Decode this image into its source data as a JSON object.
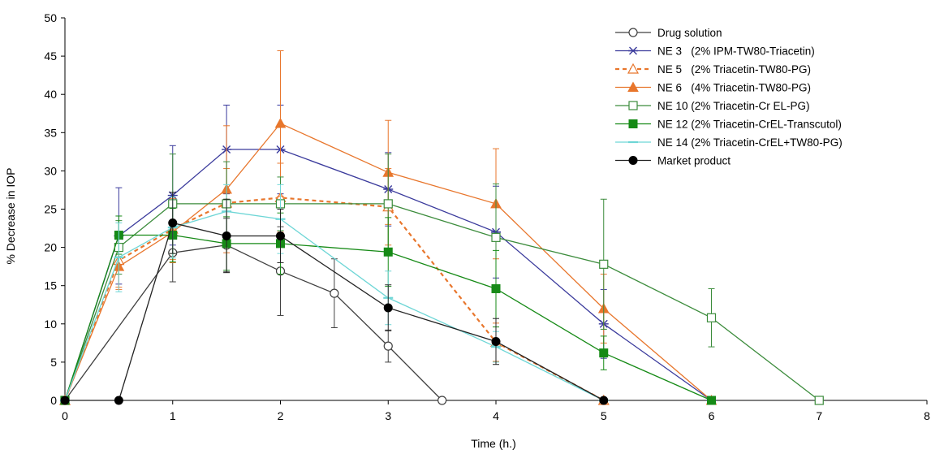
{
  "chart_data": {
    "type": "line",
    "title": "",
    "xlabel": "Time (h.)",
    "ylabel": "% Decrease in IOP",
    "xlim": [
      0,
      8
    ],
    "ylim": [
      0,
      50
    ],
    "xticks": [
      0,
      1,
      2,
      3,
      4,
      5,
      6,
      7,
      8
    ],
    "yticks": [
      0,
      5,
      10,
      15,
      20,
      25,
      30,
      35,
      40,
      45,
      50
    ],
    "grid": false,
    "legend_position": "top-right",
    "series": [
      {
        "name": "Drug solution",
        "color": "#404040",
        "marker": "open-circle",
        "dash": "solid",
        "points": [
          [
            0,
            0
          ],
          [
            1,
            19.3
          ],
          [
            1.5,
            20.3
          ],
          [
            2,
            16.9
          ],
          [
            2.5,
            14.0
          ],
          [
            3,
            7.1
          ],
          [
            3.5,
            0
          ]
        ],
        "errors": [
          0,
          3.8,
          3.5,
          5.8,
          4.5,
          2.1,
          0
        ]
      },
      {
        "name": "NE 3   (2% IPM-TW80-Triacetin)",
        "color": "#3a3a9c",
        "marker": "star",
        "dash": "solid",
        "points": [
          [
            0,
            0
          ],
          [
            0.5,
            21.5
          ],
          [
            1,
            26.8
          ],
          [
            1.5,
            32.8
          ],
          [
            2,
            32.8
          ],
          [
            3,
            27.6
          ],
          [
            4,
            22.0
          ],
          [
            5,
            10.0
          ],
          [
            6,
            0
          ]
        ],
        "errors": [
          0,
          6.3,
          6.5,
          5.8,
          5.8,
          4.8,
          6.0,
          4.5,
          0
        ]
      },
      {
        "name": "NE 5   (2% Triacetin-TW80-PG)",
        "color": "#e8762c",
        "marker": "open-triangle",
        "dash": "dashed",
        "points": [
          [
            0,
            0
          ],
          [
            0.5,
            18.3
          ],
          [
            1,
            22.4
          ],
          [
            1.5,
            25.8
          ],
          [
            2,
            26.5
          ],
          [
            3,
            25.3
          ],
          [
            4,
            7.6
          ],
          [
            5,
            0
          ]
        ],
        "errors": [
          0,
          3.5,
          4.0,
          4.5,
          4.5,
          5.0,
          2.5,
          0
        ]
      },
      {
        "name": "NE 6   (4% Triacetin-TW80-PG)",
        "color": "#e8762c",
        "marker": "filled-triangle",
        "dash": "solid",
        "points": [
          [
            0,
            0
          ],
          [
            0.5,
            17.5
          ],
          [
            1,
            22.0
          ],
          [
            1.5,
            27.6
          ],
          [
            2,
            36.2
          ],
          [
            3,
            29.8
          ],
          [
            4,
            25.7
          ],
          [
            5,
            12.0
          ],
          [
            6,
            0
          ]
        ],
        "errors": [
          0,
          3.0,
          4.0,
          8.3,
          9.5,
          6.8,
          7.2,
          4.5,
          0
        ]
      },
      {
        "name": "NE 10 (2% Triacetin-Cr EL-PG)",
        "color": "#3c8c3c",
        "marker": "open-square",
        "dash": "solid",
        "points": [
          [
            0,
            0
          ],
          [
            0.5,
            20.0
          ],
          [
            1,
            25.7
          ],
          [
            1.5,
            25.7
          ],
          [
            2,
            25.7
          ],
          [
            3,
            25.7
          ],
          [
            4,
            21.3
          ],
          [
            5,
            17.8
          ],
          [
            6,
            10.8
          ],
          [
            7,
            0
          ]
        ],
        "errors": [
          0,
          3.5,
          6.5,
          5.5,
          3.5,
          6.5,
          7.0,
          8.5,
          3.8,
          0
        ]
      },
      {
        "name": "NE 12 (2% Triacetin-CrEL-Transcutol)",
        "color": "#168a16",
        "marker": "filled-square",
        "dash": "solid",
        "points": [
          [
            0,
            0
          ],
          [
            0.5,
            21.6
          ],
          [
            1,
            21.6
          ],
          [
            1.5,
            20.5
          ],
          [
            2,
            20.5
          ],
          [
            3,
            19.4
          ],
          [
            4,
            14.6
          ],
          [
            5,
            6.2
          ],
          [
            6,
            0
          ]
        ],
        "errors": [
          0,
          2.5,
          3.5,
          3.5,
          4.0,
          4.5,
          5.0,
          2.2,
          0
        ]
      },
      {
        "name": "NE 14 (2% Triacetin-CrEL+TW80-PG)",
        "color": "#6ed6d6",
        "marker": "dash",
        "dash": "solid",
        "points": [
          [
            0,
            0
          ],
          [
            0.5,
            18.7
          ],
          [
            1,
            22.6
          ],
          [
            1.5,
            24.7
          ],
          [
            2,
            23.7
          ],
          [
            3,
            13.4
          ],
          [
            4,
            7.0
          ],
          [
            5,
            0
          ]
        ],
        "errors": [
          0,
          4.5,
          4.0,
          3.5,
          4.5,
          3.5,
          2.0,
          0
        ]
      },
      {
        "name": "Market product",
        "color": "#222222",
        "marker": "filled-circle",
        "dash": "solid",
        "points": [
          [
            0,
            0
          ],
          [
            0.5,
            0
          ],
          [
            1,
            23.2
          ],
          [
            1.5,
            21.5
          ],
          [
            2,
            21.5
          ],
          [
            3,
            12.1
          ],
          [
            4,
            7.7
          ],
          [
            5,
            0
          ]
        ],
        "errors": [
          0,
          0,
          4.0,
          4.8,
          3.5,
          3.0,
          3.0,
          0
        ]
      }
    ]
  }
}
